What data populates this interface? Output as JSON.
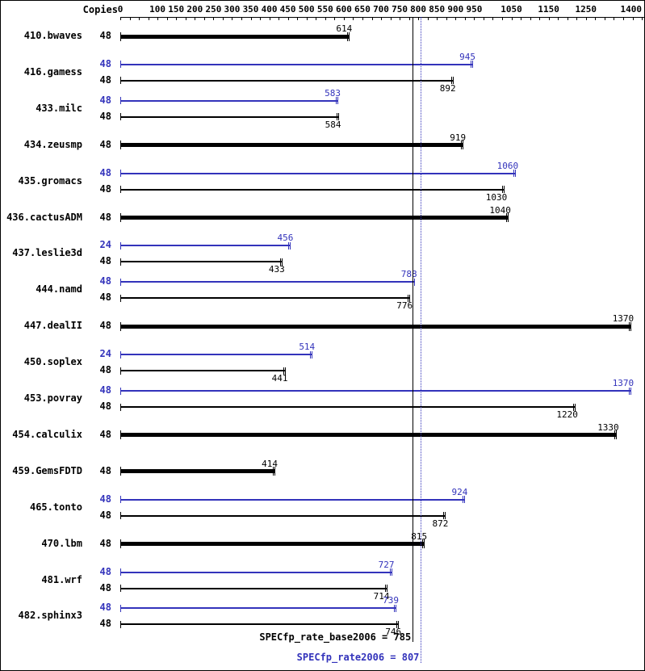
{
  "header": {
    "copies_label": "Copies"
  },
  "summary": {
    "base_text": "SPECfp_rate_base2006 = 785",
    "peak_text": "SPECfp_rate2006 = 807"
  },
  "chart_data": {
    "type": "bar",
    "orientation": "horizontal",
    "axis": {
      "min": 0,
      "max": 1400,
      "minor_tick_step": 25,
      "tick_labels": [
        0,
        100,
        150,
        200,
        250,
        300,
        350,
        400,
        450,
        500,
        550,
        600,
        650,
        700,
        750,
        800,
        850,
        900,
        950,
        1050,
        1150,
        1250,
        1400
      ]
    },
    "colors": {
      "peak": "#3333bb",
      "base": "#000000"
    },
    "summary": {
      "base_value": 785,
      "peak_value": 807
    },
    "benchmarks": [
      {
        "name": "410.bwaves",
        "rows": [
          {
            "copies": "48",
            "value": 614,
            "type": "base-thick"
          }
        ]
      },
      {
        "name": "416.gamess",
        "rows": [
          {
            "copies": "48",
            "value": 945,
            "type": "peak"
          },
          {
            "copies": "48",
            "value": 892,
            "type": "base"
          }
        ]
      },
      {
        "name": "433.milc",
        "rows": [
          {
            "copies": "48",
            "value": 583,
            "type": "peak"
          },
          {
            "copies": "48",
            "value": 584,
            "type": "base"
          }
        ]
      },
      {
        "name": "434.zeusmp",
        "rows": [
          {
            "copies": "48",
            "value": 919,
            "type": "base-thick"
          }
        ]
      },
      {
        "name": "435.gromacs",
        "rows": [
          {
            "copies": "48",
            "value": 1060,
            "type": "peak"
          },
          {
            "copies": "48",
            "value": 1030,
            "type": "base"
          }
        ]
      },
      {
        "name": "436.cactusADM",
        "rows": [
          {
            "copies": "48",
            "value": 1040,
            "type": "base-thick"
          }
        ]
      },
      {
        "name": "437.leslie3d",
        "rows": [
          {
            "copies": "24",
            "value": 456,
            "type": "peak"
          },
          {
            "copies": "48",
            "value": 433,
            "type": "base"
          }
        ]
      },
      {
        "name": "444.namd",
        "rows": [
          {
            "copies": "48",
            "value": 788,
            "type": "peak"
          },
          {
            "copies": "48",
            "value": 776,
            "type": "base"
          }
        ]
      },
      {
        "name": "447.dealII",
        "rows": [
          {
            "copies": "48",
            "value": 1370,
            "type": "base-thick"
          }
        ]
      },
      {
        "name": "450.soplex",
        "rows": [
          {
            "copies": "24",
            "value": 514,
            "type": "peak"
          },
          {
            "copies": "48",
            "value": 441,
            "type": "base"
          }
        ]
      },
      {
        "name": "453.povray",
        "rows": [
          {
            "copies": "48",
            "value": 1370,
            "type": "peak"
          },
          {
            "copies": "48",
            "value": 1220,
            "type": "base"
          }
        ]
      },
      {
        "name": "454.calculix",
        "rows": [
          {
            "copies": "48",
            "value": 1330,
            "type": "base-thick"
          }
        ]
      },
      {
        "name": "459.GemsFDTD",
        "rows": [
          {
            "copies": "48",
            "value": 414,
            "type": "base-thick"
          }
        ]
      },
      {
        "name": "465.tonto",
        "rows": [
          {
            "copies": "48",
            "value": 924,
            "type": "peak"
          },
          {
            "copies": "48",
            "value": 872,
            "type": "base"
          }
        ]
      },
      {
        "name": "470.lbm",
        "rows": [
          {
            "copies": "48",
            "value": 815,
            "type": "base-thick"
          }
        ]
      },
      {
        "name": "481.wrf",
        "rows": [
          {
            "copies": "48",
            "value": 727,
            "type": "peak"
          },
          {
            "copies": "48",
            "value": 714,
            "type": "base"
          }
        ]
      },
      {
        "name": "482.sphinx3",
        "rows": [
          {
            "copies": "48",
            "value": 739,
            "type": "peak"
          },
          {
            "copies": "48",
            "value": 746,
            "type": "base"
          }
        ]
      }
    ]
  }
}
